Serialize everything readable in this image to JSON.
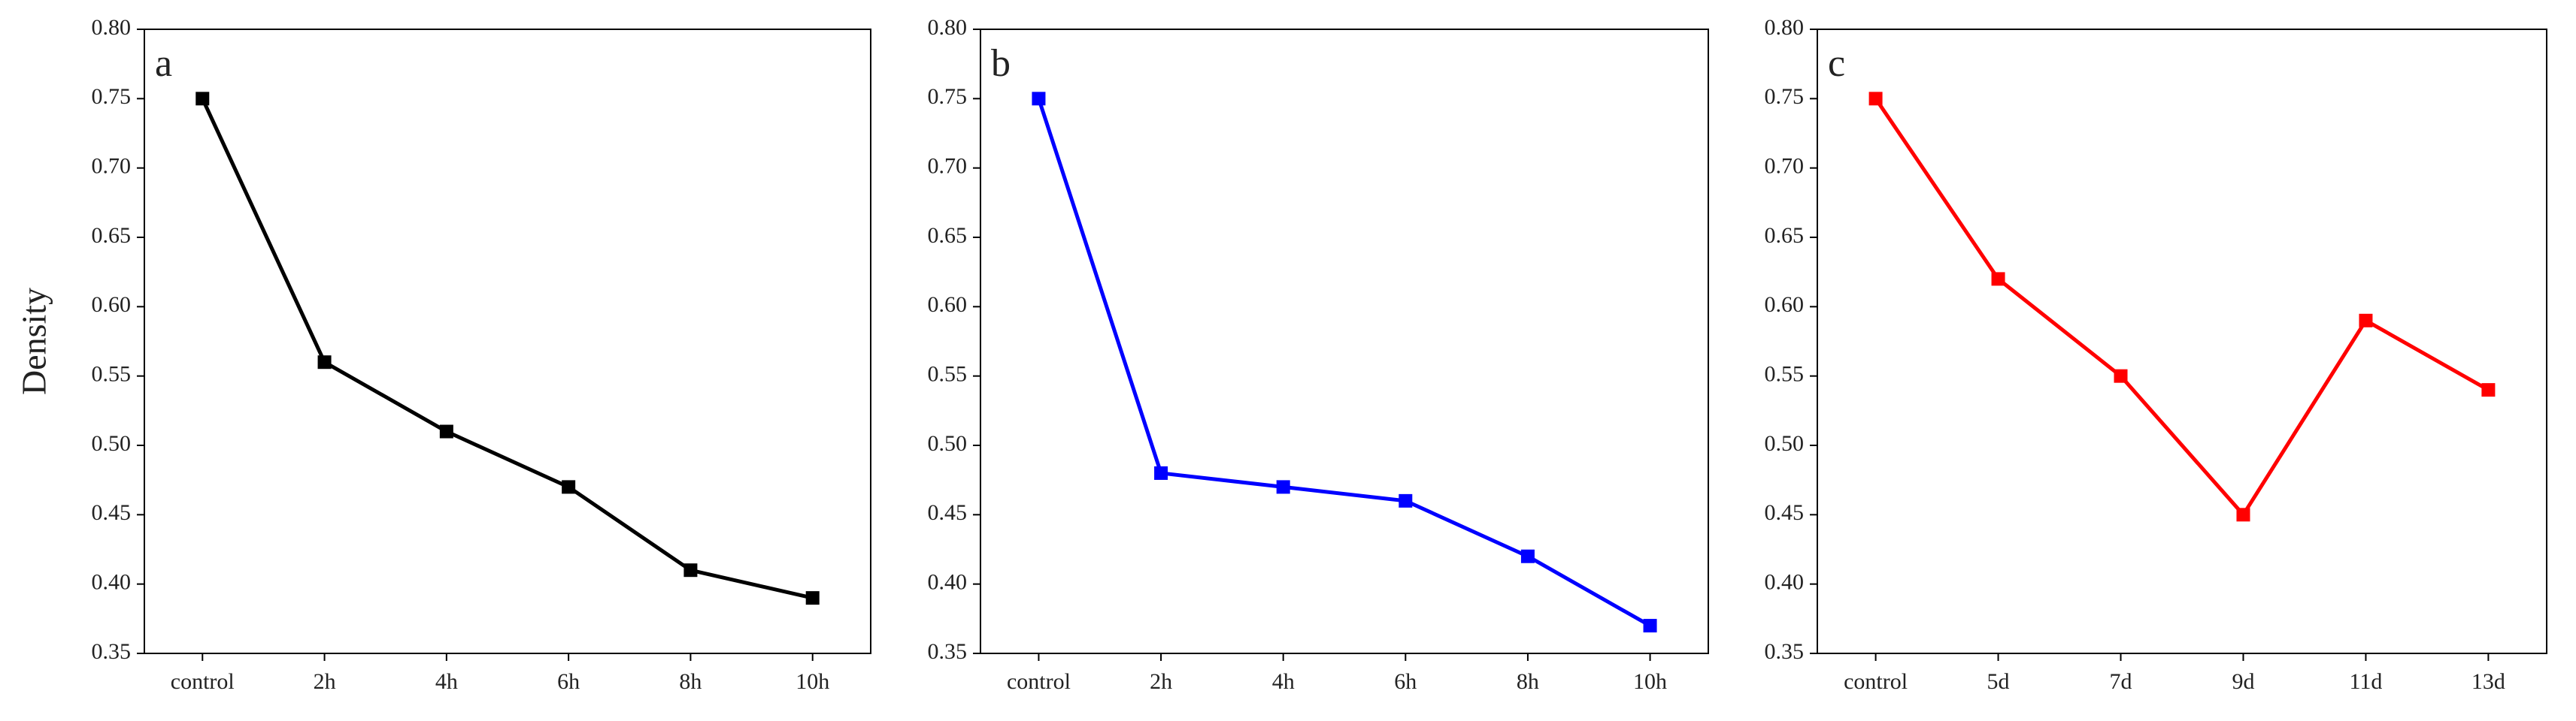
{
  "chart_data": [
    {
      "type": "line",
      "annotation": "a",
      "ylabel": "Density",
      "categories": [
        "control",
        "2h",
        "4h",
        "6h",
        "8h",
        "10h"
      ],
      "values": [
        0.75,
        0.56,
        0.51,
        0.47,
        0.41,
        0.39
      ],
      "color": "#000000",
      "ylim": [
        0.35,
        0.8
      ],
      "yticks": [
        0.35,
        {
          "value": 0.4,
          "label": "0.40"
        },
        0.45,
        {
          "value": 0.5,
          "label": "0.50"
        },
        0.55,
        {
          "value": 0.6,
          "label": "0.60"
        },
        0.65,
        {
          "value": 0.7,
          "label": "0.70"
        },
        0.75,
        {
          "value": 0.8,
          "label": "0.80"
        }
      ]
    },
    {
      "type": "line",
      "annotation": "b",
      "categories": [
        "control",
        "2h",
        "4h",
        "6h",
        "8h",
        "10h"
      ],
      "values": [
        0.75,
        0.48,
        0.47,
        0.46,
        0.42,
        0.37
      ],
      "color": "#0000ff",
      "ylim": [
        0.35,
        0.8
      ],
      "yticks": [
        0.35,
        {
          "value": 0.4,
          "label": "0.40"
        },
        0.45,
        {
          "value": 0.5,
          "label": "0.50"
        },
        0.55,
        {
          "value": 0.6,
          "label": "0.60"
        },
        0.65,
        {
          "value": 0.7,
          "label": "0.70"
        },
        0.75,
        {
          "value": 0.8,
          "label": "0.80"
        }
      ]
    },
    {
      "type": "line",
      "annotation": "c",
      "categories": [
        "control",
        "5d",
        "7d",
        "9d",
        "11d",
        "13d"
      ],
      "values": [
        0.75,
        0.62,
        0.55,
        0.45,
        0.59,
        0.54
      ],
      "color": "#ff0000",
      "ylim": [
        0.35,
        0.8
      ],
      "yticks": [
        0.35,
        {
          "value": 0.4,
          "label": "0.40"
        },
        0.45,
        {
          "value": 0.5,
          "label": "0.50"
        },
        0.55,
        {
          "value": 0.6,
          "label": "0.60"
        },
        0.65,
        {
          "value": 0.7,
          "label": "0.70"
        },
        0.75,
        {
          "value": 0.8,
          "label": "0.80"
        }
      ]
    }
  ]
}
